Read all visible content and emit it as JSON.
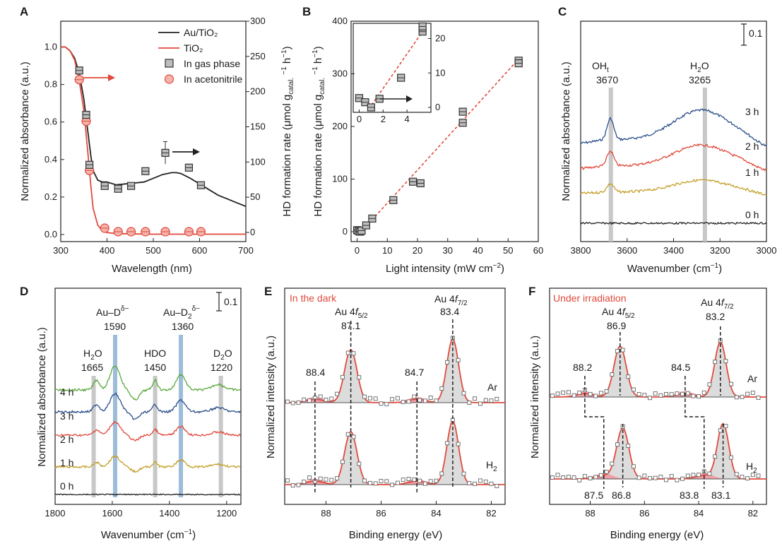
{
  "colors": {
    "au": "#222222",
    "tio2": "#e04a3c",
    "sq_fill": "#bdbdbd",
    "green": "#5aa83c",
    "blue": "#2c4f8c",
    "red": "#e04a3c",
    "gold": "#c4a02a",
    "black": "#222222",
    "grey_band": "#c8c8c8",
    "blue_band": "#9dbcd8",
    "peak_fill": "#dcdcdc",
    "pink": "#f0a0a8"
  },
  "panels": {
    "A": "A",
    "B": "B",
    "C": "C",
    "D": "D",
    "E": "E",
    "F": "F"
  },
  "chart_data": [
    {
      "panel": "A",
      "type": "line",
      "xlabel": "Wavelength (nm)",
      "ylabel": "Normalized absorbance (a.u.)",
      "ylabel_right": "HD formation rate (μmol g_catal.⁻¹ h⁻¹)",
      "xlim": [
        300,
        700
      ],
      "ylim": [
        0,
        1.1
      ],
      "ylim_right": [
        0,
        300
      ],
      "xticks": [
        300,
        400,
        500,
        600,
        700
      ],
      "yticks": [
        0.0,
        0.2,
        0.4,
        0.6,
        0.8,
        1.0
      ],
      "yticks_right": [
        0,
        50,
        100,
        150,
        200,
        250,
        300
      ],
      "legend": [
        "Au/TiO₂",
        "TiO₂",
        "In gas phase",
        "In acetonitrile"
      ],
      "legend_position": "top-right",
      "series": [
        {
          "name": "Au/TiO₂",
          "x": [
            300,
            310,
            320,
            330,
            340,
            350,
            360,
            365,
            370,
            380,
            390,
            400,
            420,
            440,
            460,
            480,
            500,
            520,
            540,
            550,
            560,
            580,
            600,
            620,
            640,
            660,
            680,
            700
          ],
          "y": [
            1.0,
            1.0,
            0.98,
            0.94,
            0.86,
            0.72,
            0.52,
            0.42,
            0.34,
            0.29,
            0.28,
            0.28,
            0.265,
            0.27,
            0.275,
            0.28,
            0.3,
            0.32,
            0.33,
            0.33,
            0.325,
            0.3,
            0.27,
            0.24,
            0.21,
            0.19,
            0.17,
            0.15
          ]
        },
        {
          "name": "TiO₂",
          "x": [
            300,
            310,
            320,
            330,
            340,
            350,
            360,
            365,
            370,
            380,
            390,
            400,
            420,
            460,
            500,
            560,
            620,
            700
          ],
          "y": [
            1.0,
            1.0,
            0.98,
            0.93,
            0.82,
            0.66,
            0.4,
            0.26,
            0.14,
            0.05,
            0.02,
            0.01,
            0.005,
            0.003,
            0.002,
            0.002,
            0.002,
            0.002
          ]
        },
        {
          "name": "In gas phase",
          "x": [
            340,
            355,
            362,
            395,
            424,
            452,
            483,
            526,
            577,
            603
          ],
          "y": [
            230,
            167,
            96,
            66,
            62,
            66,
            87,
            113,
            92,
            67
          ],
          "err": [
            0,
            0,
            0,
            0,
            0,
            0,
            0,
            16,
            0,
            0
          ]
        },
        {
          "name": "In acetonitrile",
          "x": [
            340,
            355,
            362,
            395,
            424,
            452,
            483,
            526,
            577,
            603
          ],
          "y": [
            217,
            158,
            88,
            6,
            1,
            1,
            1,
            1,
            1,
            1
          ]
        }
      ]
    },
    {
      "panel": "B",
      "type": "scatter",
      "xlabel": "Light intensity (mW cm⁻²)",
      "ylabel": "HD formation rate (μmol g_catal.⁻¹ h⁻¹)",
      "xlim": [
        -2,
        60
      ],
      "ylim": [
        -5,
        400
      ],
      "xticks": [
        0,
        10,
        20,
        30,
        40,
        50,
        60
      ],
      "yticks": [
        0,
        100,
        200,
        300,
        400
      ],
      "points": {
        "x": [
          0,
          0.5,
          1,
          1.5,
          3,
          5,
          12,
          18.5,
          21,
          35,
          35,
          53.5,
          53.5
        ],
        "y": [
          3,
          1,
          0,
          2,
          12,
          25,
          60,
          95,
          92,
          228,
          207,
          325,
          320
        ]
      },
      "fit": {
        "x": [
          1.5,
          53.5
        ],
        "y": [
          1,
          328
        ]
      },
      "inset": {
        "xlim": [
          -0.5,
          6
        ],
        "ylim": [
          -3,
          24
        ],
        "xticks": [
          0,
          2,
          4,
          6
        ],
        "yticks": [
          0,
          10,
          20
        ],
        "x": [
          0,
          0.5,
          1,
          1.7,
          3.5,
          5.3,
          5.3
        ],
        "y": [
          2.7,
          1.5,
          0,
          2.5,
          8.6,
          22,
          23.5
        ],
        "fit": {
          "x": [
            0.8,
            5.4
          ],
          "y": [
            -0.5,
            22.5
          ]
        }
      }
    },
    {
      "panel": "C",
      "type": "line",
      "xlabel": "Wavenumber (cm⁻¹)",
      "ylabel": "Normalized absorbance (a.u.)",
      "xlim": [
        3800,
        3000
      ],
      "xticks": [
        3800,
        3600,
        3400,
        3200,
        3000
      ],
      "scalebar": "0.1",
      "bands": [
        {
          "pos": 3670,
          "label": "OH",
          "sub": "t",
          "value": "3670"
        },
        {
          "pos": 3265,
          "label": "H₂O",
          "value": "3265"
        }
      ],
      "series": [
        {
          "name": "3 h"
        },
        {
          "name": "2 h"
        },
        {
          "name": "1 h"
        },
        {
          "name": "0 h"
        }
      ]
    },
    {
      "panel": "D",
      "type": "line",
      "xlabel": "Wavenumber (cm⁻¹)",
      "ylabel": "Normalized absorbance (a.u.)",
      "xlim": [
        1800,
        1150
      ],
      "xticks": [
        1800,
        1600,
        1400,
        1200
      ],
      "scalebar": "0.1",
      "bands": [
        {
          "pos": 1665,
          "label": "H₂O",
          "value": "1665"
        },
        {
          "pos": 1590,
          "label": "Au–D",
          "sup": "δ−",
          "value": "1590"
        },
        {
          "pos": 1450,
          "label": "HDO",
          "value": "1450"
        },
        {
          "pos": 1360,
          "label": "Au–D₂",
          "sup": "δ−",
          "value": "1360"
        },
        {
          "pos": 1220,
          "label": "D₂O",
          "value": "1220"
        }
      ],
      "series": [
        {
          "name": "4 h"
        },
        {
          "name": "3 h"
        },
        {
          "name": "2 h"
        },
        {
          "name": "1 h"
        },
        {
          "name": "0 h"
        }
      ]
    },
    {
      "panel": "E",
      "type": "scatter",
      "title": "In the dark",
      "xlabel": "Binding energy (eV)",
      "ylabel": "Normalized intensity (a.u.)",
      "xlim": [
        89.5,
        81.5
      ],
      "xticks": [
        88,
        86,
        84,
        82
      ],
      "peaks": [
        {
          "label": "Au 4f5/2",
          "value": "87.1",
          "pos": 87.1
        },
        {
          "label": "Au 4f7/2",
          "value": "83.4",
          "pos": 83.4
        }
      ],
      "minor": [
        {
          "value": "88.4",
          "pos": 88.4
        },
        {
          "value": "84.7",
          "pos": 84.7
        }
      ],
      "spectra": [
        {
          "name": "Ar"
        },
        {
          "name": "H₂"
        }
      ]
    },
    {
      "panel": "F",
      "type": "scatter",
      "title": "Under irradiation",
      "xlabel": "Binding energy (eV)",
      "ylabel": "Normalized intensity (a.u.)",
      "xlim": [
        89.5,
        81.5
      ],
      "xticks": [
        88,
        86,
        84,
        82
      ],
      "peaks": [
        {
          "label": "Au 4f5/2",
          "value": "86.9",
          "pos": 86.9
        },
        {
          "label": "Au 4f7/2",
          "value": "83.2",
          "pos": 83.2
        }
      ],
      "minor_top": [
        {
          "value": "88.2",
          "pos": 88.2
        },
        {
          "value": "84.5",
          "pos": 84.5
        }
      ],
      "bottom_values": [
        {
          "value": "87.5",
          "pos": 87.5
        },
        {
          "value": "86.8",
          "pos": 86.8
        },
        {
          "value": "83.8",
          "pos": 83.8
        },
        {
          "value": "83.1",
          "pos": 83.1
        }
      ],
      "spectra": [
        {
          "name": "Ar"
        },
        {
          "name": "H₂"
        }
      ]
    }
  ]
}
